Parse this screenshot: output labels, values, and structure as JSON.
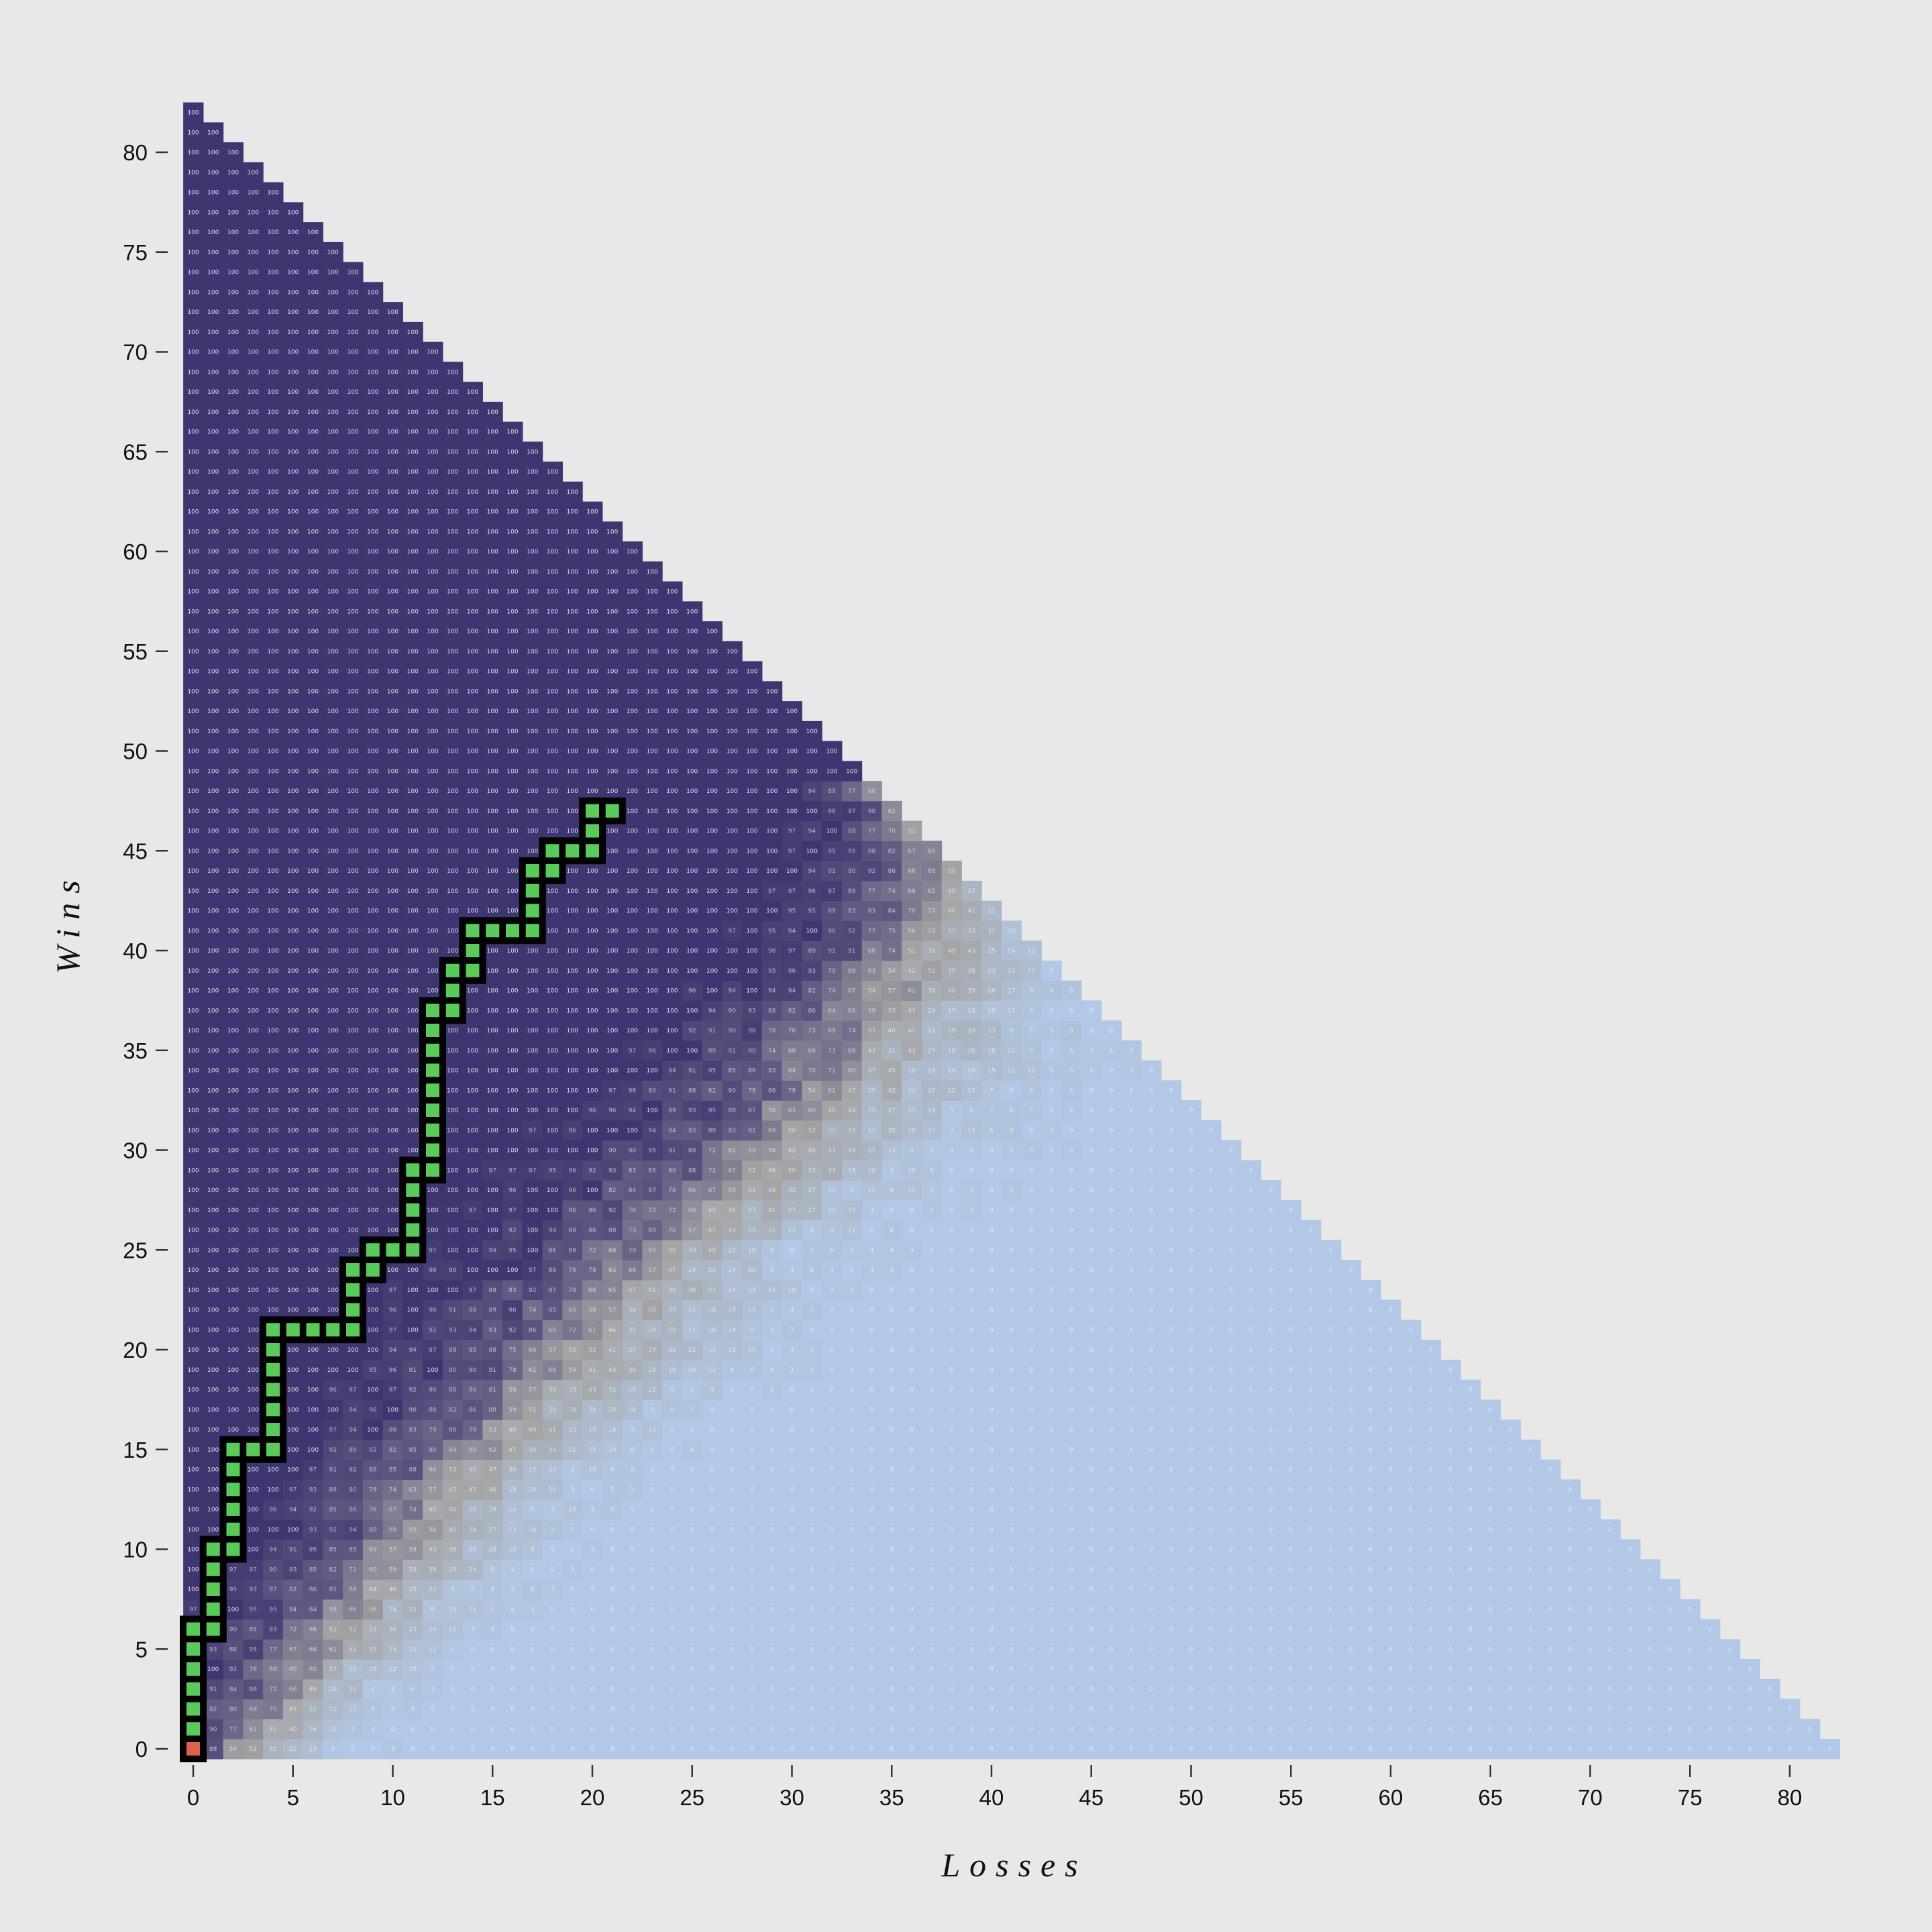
{
  "chart_data": {
    "type": "heatmap",
    "title": "",
    "xlabel": "Losses",
    "ylabel": "Wins",
    "xlim": [
      0,
      82
    ],
    "ylim": [
      0,
      82
    ],
    "x_ticks": [
      0,
      5,
      10,
      15,
      20,
      25,
      30,
      35,
      40,
      45,
      50,
      55,
      60,
      65,
      70,
      75,
      80
    ],
    "y_ticks": [
      0,
      5,
      10,
      15,
      20,
      25,
      30,
      35,
      40,
      45,
      50,
      55,
      60,
      65,
      70,
      75,
      80
    ],
    "cell_domain": "wins + losses <= 82",
    "value_range": [
      0,
      100
    ],
    "color_scale": {
      "low": "#b3c8e6",
      "mid": "#a4a4a4",
      "high": "#3d3670"
    },
    "transition_band": [
      {
        "wins": 0,
        "center": 3,
        "width": 5
      },
      {
        "wins": 5,
        "center": 7,
        "width": 6
      },
      {
        "wins": 10,
        "center": 11,
        "width": 7
      },
      {
        "wins": 15,
        "center": 15,
        "width": 8
      },
      {
        "wins": 20,
        "center": 20,
        "width": 9
      },
      {
        "wins": 25,
        "center": 24,
        "width": 9
      },
      {
        "wins": 30,
        "center": 30,
        "width": 10
      },
      {
        "wins": 35,
        "center": 34,
        "width": 10
      },
      {
        "wins": 40,
        "center": 37,
        "width": 8
      },
      {
        "wins": 45,
        "center": 38,
        "width": 6
      },
      {
        "wins": 48,
        "center": 35,
        "width": 4
      }
    ],
    "path": {
      "color": "#5acb5a",
      "start_color": "#e06050",
      "points": [
        [
          0,
          0
        ],
        [
          0,
          1
        ],
        [
          0,
          2
        ],
        [
          0,
          3
        ],
        [
          0,
          4
        ],
        [
          0,
          5
        ],
        [
          0,
          6
        ],
        [
          1,
          6
        ],
        [
          1,
          7
        ],
        [
          1,
          8
        ],
        [
          1,
          9
        ],
        [
          1,
          10
        ],
        [
          2,
          10
        ],
        [
          2,
          11
        ],
        [
          2,
          12
        ],
        [
          2,
          13
        ],
        [
          2,
          14
        ],
        [
          2,
          15
        ],
        [
          3,
          15
        ],
        [
          4,
          15
        ],
        [
          4,
          16
        ],
        [
          4,
          17
        ],
        [
          4,
          18
        ],
        [
          4,
          19
        ],
        [
          4,
          20
        ],
        [
          4,
          21
        ],
        [
          5,
          21
        ],
        [
          6,
          21
        ],
        [
          7,
          21
        ],
        [
          8,
          21
        ],
        [
          8,
          22
        ],
        [
          8,
          23
        ],
        [
          8,
          24
        ],
        [
          9,
          24
        ],
        [
          9,
          25
        ],
        [
          10,
          25
        ],
        [
          11,
          25
        ],
        [
          11,
          26
        ],
        [
          11,
          27
        ],
        [
          11,
          28
        ],
        [
          11,
          29
        ],
        [
          12,
          29
        ],
        [
          12,
          30
        ],
        [
          12,
          31
        ],
        [
          12,
          32
        ],
        [
          12,
          33
        ],
        [
          12,
          34
        ],
        [
          12,
          35
        ],
        [
          12,
          36
        ],
        [
          12,
          37
        ],
        [
          13,
          37
        ],
        [
          13,
          38
        ],
        [
          13,
          39
        ],
        [
          14,
          39
        ],
        [
          14,
          40
        ],
        [
          14,
          41
        ],
        [
          15,
          41
        ],
        [
          16,
          41
        ],
        [
          17,
          41
        ],
        [
          17,
          42
        ],
        [
          17,
          43
        ],
        [
          17,
          44
        ],
        [
          18,
          44
        ],
        [
          18,
          45
        ],
        [
          19,
          45
        ],
        [
          20,
          45
        ],
        [
          20,
          46
        ],
        [
          20,
          47
        ],
        [
          21,
          47
        ]
      ]
    }
  }
}
